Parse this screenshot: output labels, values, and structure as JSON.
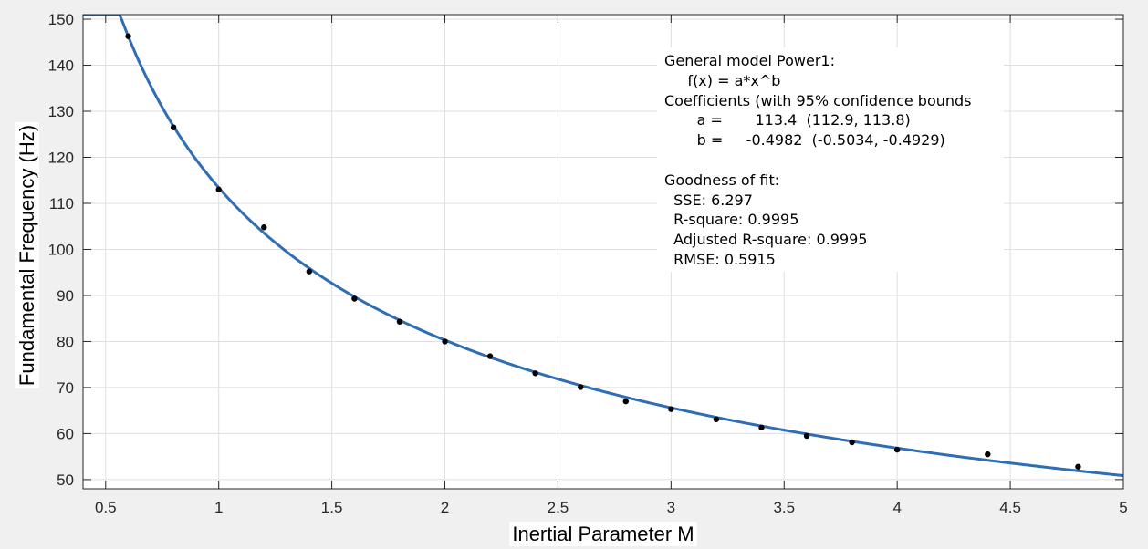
{
  "chart_data": {
    "type": "scatter",
    "xlabel": "Inertial Parameter M",
    "ylabel": "Fundamental Frequency (Hz)",
    "xlim": [
      0.4,
      5
    ],
    "ylim": [
      48,
      151
    ],
    "xticks": [
      "0.5",
      "1",
      "1.5",
      "2",
      "2.5",
      "3",
      "3.5",
      "4",
      "4.5",
      "5"
    ],
    "yticks": [
      "50",
      "60",
      "70",
      "80",
      "90",
      "100",
      "110",
      "120",
      "130",
      "140",
      "150"
    ],
    "grid": true,
    "series": [
      {
        "kind": "scatter",
        "color": "#000000",
        "points": [
          {
            "x": 0.6,
            "y": 146.3
          },
          {
            "x": 0.8,
            "y": 126.5
          },
          {
            "x": 1.0,
            "y": 113.0
          },
          {
            "x": 1.2,
            "y": 104.8
          },
          {
            "x": 1.4,
            "y": 95.2
          },
          {
            "x": 1.6,
            "y": 89.3
          },
          {
            "x": 1.8,
            "y": 84.3
          },
          {
            "x": 2.0,
            "y": 80.0
          },
          {
            "x": 2.2,
            "y": 76.8
          },
          {
            "x": 2.4,
            "y": 73.1
          },
          {
            "x": 2.6,
            "y": 70.1
          },
          {
            "x": 2.8,
            "y": 67.0
          },
          {
            "x": 3.0,
            "y": 65.3
          },
          {
            "x": 3.2,
            "y": 63.1
          },
          {
            "x": 3.4,
            "y": 61.3
          },
          {
            "x": 3.6,
            "y": 59.5
          },
          {
            "x": 3.8,
            "y": 58.1
          },
          {
            "x": 4.0,
            "y": 56.5
          },
          {
            "x": 4.4,
            "y": 55.5
          },
          {
            "x": 4.8,
            "y": 52.8
          }
        ]
      },
      {
        "kind": "fit-curve",
        "color": "#2f6db5",
        "model": "power1",
        "a": 113.4,
        "b": -0.4982
      }
    ],
    "annotation_lines": [
      "General model Power1:",
      "     f(x) = a*x^b",
      "Coefficients (with 95% confidence bounds",
      "       a =       113.4  (112.9, 113.8)",
      "       b =     -0.4982  (-0.5034, -0.4929)",
      "",
      "Goodness of fit:",
      "  SSE: 6.297",
      "  R-square: 0.9995",
      "  Adjusted R-square: 0.9995",
      "  RMSE: 0.5915"
    ]
  }
}
